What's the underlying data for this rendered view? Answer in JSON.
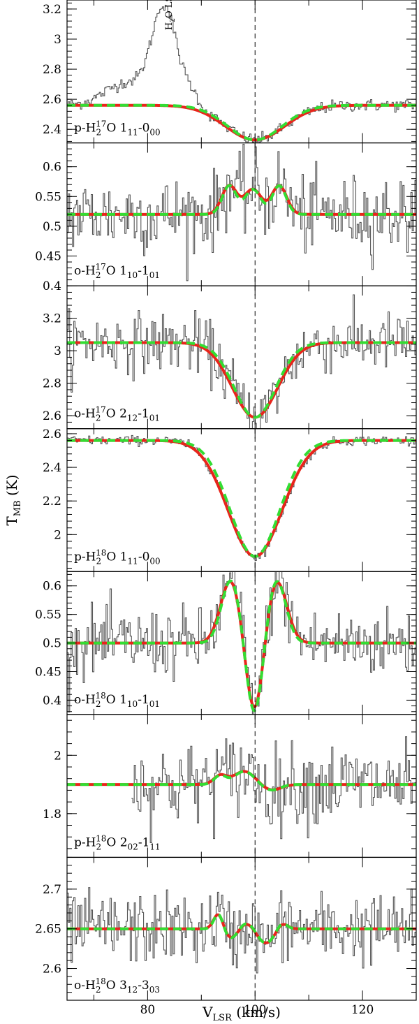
{
  "chart_data": {
    "type": "line",
    "layout": "7 vertically stacked panels sharing the x axis",
    "xlabel": "V_LSR (km/s)",
    "ylabel": "T_MB (K)",
    "xlim": [
      65,
      130
    ],
    "x_ticks": [
      80,
      100,
      120
    ],
    "vline_x": 100,
    "series_styles": {
      "observed": {
        "color": "#555555",
        "style": "histogram"
      },
      "model_a": {
        "color": "#e8251b",
        "style": "solid"
      },
      "model_b": {
        "color": "#33dd33",
        "style": "dashed"
      }
    },
    "panels": [
      {
        "label_parts": [
          "p-H",
          "2",
          "17",
          "O 1",
          "11",
          "-0",
          "00"
        ],
        "ylim": [
          2.31,
          3.26
        ],
        "y_ticks": [
          2.4,
          2.6,
          2.8,
          3,
          3.2
        ],
        "baseline": 2.56,
        "features": [
          {
            "center": 100,
            "amp": -0.23,
            "width": 5.5
          }
        ],
        "noise": 0.02,
        "observed_extra": {
          "type": "lsb_bump",
          "min_x": 65
        },
        "annotation": {
          "text_parts": [
            "H",
            "2",
            "O LSB"
          ],
          "x": 84.5,
          "y": 3.06
        }
      },
      {
        "label_parts": [
          "o-H",
          "2",
          "17",
          "O 1",
          "10",
          "-1",
          "01"
        ],
        "ylim": [
          0.4,
          0.64
        ],
        "y_ticks": [
          0.4,
          0.45,
          0.5,
          0.55,
          0.6
        ],
        "baseline": 0.52,
        "features": [
          {
            "center": 95.2,
            "amp": 0.048,
            "width": 1.4
          },
          {
            "center": 99.6,
            "amp": 0.042,
            "width": 1.6
          },
          {
            "center": 104.5,
            "amp": 0.048,
            "width": 1.4
          }
        ],
        "noise": 0.032
      },
      {
        "label_parts": [
          "o-H",
          "2",
          "17",
          "O 2",
          "12",
          "-1",
          "01"
        ],
        "ylim": [
          2.52,
          3.4
        ],
        "y_ticks": [
          2.6,
          2.8,
          3,
          3.2
        ],
        "baseline": 3.05,
        "features": [
          {
            "center": 100,
            "amp": -0.46,
            "width": 4.2
          }
        ],
        "noise": 0.09
      },
      {
        "label_parts": [
          "p-H",
          "2",
          "18",
          "O 1",
          "11",
          "-0",
          "00"
        ],
        "ylim": [
          1.78,
          2.63
        ],
        "y_ticks": [
          2,
          2.2,
          2.4,
          2.6
        ],
        "baseline": 2.56,
        "features": [
          {
            "center": 100,
            "amp": -0.69,
            "width": 5.0
          }
        ],
        "noise": 0.014
      },
      {
        "label_parts": [
          "o-H",
          "2",
          "18",
          "O 1",
          "10",
          "-1",
          "01"
        ],
        "ylim": [
          0.375,
          0.625
        ],
        "y_ticks": [
          0.4,
          0.45,
          0.5,
          0.55,
          0.6
        ],
        "baseline": 0.5,
        "features": [
          {
            "center": 95.5,
            "amp": 0.11,
            "width": 1.9
          },
          {
            "center": 99.9,
            "amp": -0.13,
            "width": 1.6
          },
          {
            "center": 104,
            "amp": 0.11,
            "width": 1.9
          }
        ],
        "noise": 0.03
      },
      {
        "label_parts": [
          "p-H",
          "2",
          "18",
          "O 2",
          "02",
          "-1",
          "11"
        ],
        "ylim": [
          1.65,
          2.14
        ],
        "y_ticks": [
          1.8,
          2
        ],
        "baseline": 1.9,
        "features": [
          {
            "center": 93.5,
            "amp": 0.03,
            "width": 1.2
          },
          {
            "center": 98,
            "amp": 0.045,
            "width": 2.0
          },
          {
            "center": 103,
            "amp": -0.02,
            "width": 1.8
          }
        ],
        "noise": 0.07,
        "data_start_x": 77
      },
      {
        "label_parts": [
          "o-H",
          "2",
          "18",
          "O 3",
          "12",
          "-3",
          "03"
        ],
        "ylim": [
          2.56,
          2.74
        ],
        "y_ticks": [
          2.6,
          2.65,
          2.7
        ],
        "baseline": 2.65,
        "features": [
          {
            "center": 93.2,
            "amp": 0.02,
            "width": 0.9
          },
          {
            "center": 95.5,
            "amp": -0.012,
            "width": 1.3
          },
          {
            "center": 98.5,
            "amp": 0.008,
            "width": 1.3
          },
          {
            "center": 102,
            "amp": -0.018,
            "width": 1.6
          },
          {
            "center": 105,
            "amp": 0.008,
            "width": 1.0
          }
        ],
        "noise": 0.022
      }
    ]
  }
}
